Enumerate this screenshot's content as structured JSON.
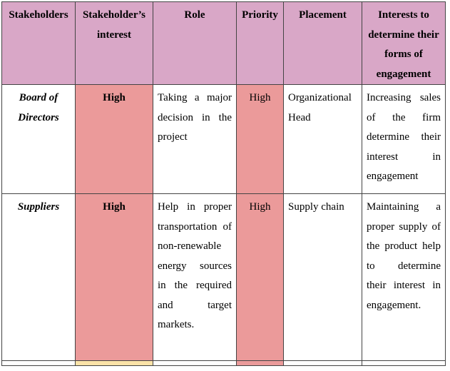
{
  "table": {
    "headers": [
      "Stakeholders",
      "Stakeholder’s interest",
      "Role",
      "Priority",
      "Placement",
      "Interests to determine their forms of engagement"
    ],
    "rows": [
      {
        "stakeholder": "Board of Directors",
        "interest": "High",
        "role": "Taking a major decision in the project",
        "priority": "High",
        "placement": "Organizational Head",
        "engagement": "Increasing sales of the firm determine their interest in engagement"
      },
      {
        "stakeholder": "Suppliers",
        "interest": "High",
        "role": "Help in proper transportation of non-renewable energy sources in the required and target markets.",
        "priority": "High",
        "placement": "Supply chain",
        "engagement": "Maintaining a proper supply of the product help to determine their interest in engagement."
      }
    ]
  },
  "colors": {
    "header_bg": "#d9a7c7",
    "highlight_red": "#eb9a9a",
    "highlight_yellow": "#fbe3a8"
  }
}
